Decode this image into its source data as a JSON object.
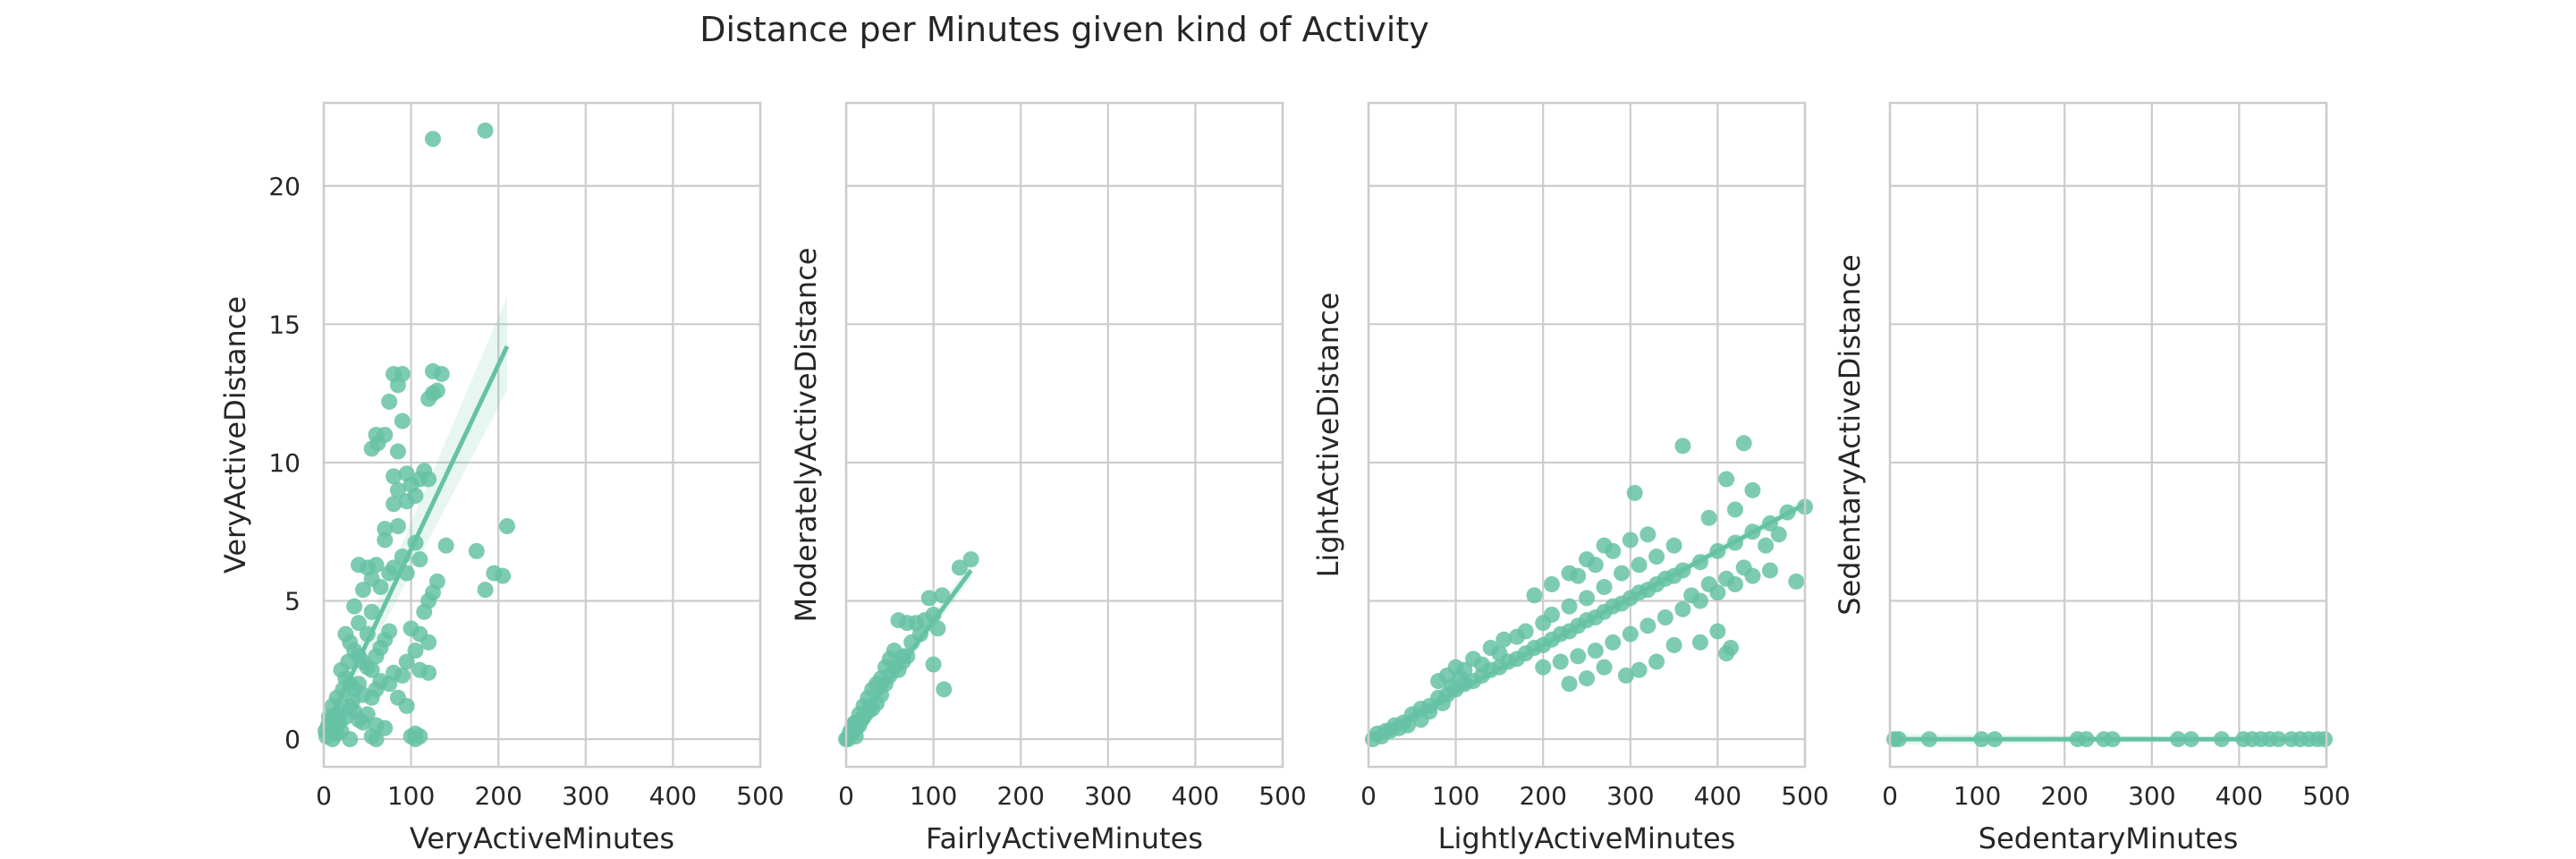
{
  "title": "Distance per Minutes given kind of Activity",
  "colors": {
    "accent": "#66c2a5",
    "grid": "#cccccc",
    "text": "#262626",
    "background": "#ffffff"
  },
  "chart_data": [
    {
      "type": "scatter",
      "xlabel": "VeryActiveMinutes",
      "ylabel": "VeryActiveDistance",
      "xlim": [
        0,
        500
      ],
      "ylim": [
        -1,
        23
      ],
      "xticks": [
        0,
        100,
        200,
        300,
        400,
        500
      ],
      "yticks": [
        0,
        5,
        10,
        15,
        20
      ],
      "show_yticklabels": true,
      "grid": true,
      "regression": {
        "x": [
          0,
          210
        ],
        "y": [
          0.2,
          14.2
        ],
        "ci_upper_end": 16.0,
        "ci_lower_end": 12.6
      },
      "points": [
        [
          125,
          21.7
        ],
        [
          185,
          22.0
        ],
        [
          80,
          13.2
        ],
        [
          90,
          13.2
        ],
        [
          125,
          13.3
        ],
        [
          135,
          13.2
        ],
        [
          85,
          12.8
        ],
        [
          125,
          12.5
        ],
        [
          130,
          12.6
        ],
        [
          75,
          12.2
        ],
        [
          120,
          12.3
        ],
        [
          90,
          11.5
        ],
        [
          60,
          11.0
        ],
        [
          70,
          11.0
        ],
        [
          55,
          10.5
        ],
        [
          85,
          10.4
        ],
        [
          62,
          10.7
        ],
        [
          80,
          9.5
        ],
        [
          95,
          9.6
        ],
        [
          110,
          9.4
        ],
        [
          115,
          9.7
        ],
        [
          85,
          9.0
        ],
        [
          100,
          9.2
        ],
        [
          80,
          8.5
        ],
        [
          95,
          8.6
        ],
        [
          105,
          8.8
        ],
        [
          120,
          9.4
        ],
        [
          85,
          7.7
        ],
        [
          70,
          7.6
        ],
        [
          140,
          7.0
        ],
        [
          210,
          7.7
        ],
        [
          175,
          6.8
        ],
        [
          195,
          6.0
        ],
        [
          205,
          5.9
        ],
        [
          185,
          5.4
        ],
        [
          70,
          7.2
        ],
        [
          90,
          6.6
        ],
        [
          105,
          7.1
        ],
        [
          110,
          6.5
        ],
        [
          60,
          6.3
        ],
        [
          75,
          6.0
        ],
        [
          50,
          6.2
        ],
        [
          40,
          6.3
        ],
        [
          55,
          5.8
        ],
        [
          80,
          6.2
        ],
        [
          95,
          6.0
        ],
        [
          65,
          5.5
        ],
        [
          45,
          5.4
        ],
        [
          35,
          4.8
        ],
        [
          55,
          4.6
        ],
        [
          130,
          5.7
        ],
        [
          125,
          5.3
        ],
        [
          120,
          5.0
        ],
        [
          115,
          4.6
        ],
        [
          100,
          4.0
        ],
        [
          110,
          3.8
        ],
        [
          120,
          3.5
        ],
        [
          105,
          3.2
        ],
        [
          95,
          2.8
        ],
        [
          120,
          2.4
        ],
        [
          110,
          2.5
        ],
        [
          90,
          2.3
        ],
        [
          80,
          2.4
        ],
        [
          25,
          3.8
        ],
        [
          30,
          3.5
        ],
        [
          35,
          3.2
        ],
        [
          40,
          3.0
        ],
        [
          45,
          2.8
        ],
        [
          50,
          2.6
        ],
        [
          55,
          2.5
        ],
        [
          60,
          3.0
        ],
        [
          65,
          3.3
        ],
        [
          70,
          3.6
        ],
        [
          75,
          3.9
        ],
        [
          50,
          3.8
        ],
        [
          40,
          4.2
        ],
        [
          20,
          2.5
        ],
        [
          25,
          2.2
        ],
        [
          30,
          2.0
        ],
        [
          35,
          1.8
        ],
        [
          40,
          2.0
        ],
        [
          45,
          1.6
        ],
        [
          55,
          1.5
        ],
        [
          60,
          1.8
        ],
        [
          65,
          2.1
        ],
        [
          75,
          2.0
        ],
        [
          85,
          1.5
        ],
        [
          95,
          1.2
        ],
        [
          10,
          1.2
        ],
        [
          15,
          1.5
        ],
        [
          20,
          1.0
        ],
        [
          25,
          0.8
        ],
        [
          30,
          1.2
        ],
        [
          35,
          1.0
        ],
        [
          40,
          0.7
        ],
        [
          45,
          0.6
        ],
        [
          50,
          0.9
        ],
        [
          60,
          0.5
        ],
        [
          70,
          0.4
        ],
        [
          2,
          0.3
        ],
        [
          5,
          0.5
        ],
        [
          8,
          0.7
        ],
        [
          12,
          0.4
        ],
        [
          15,
          0.2
        ],
        [
          18,
          0.6
        ],
        [
          3,
          0.1
        ],
        [
          6,
          0.8
        ],
        [
          10,
          0.0
        ],
        [
          14,
          0.9
        ],
        [
          20,
          0.3
        ],
        [
          30,
          0.0
        ],
        [
          55,
          0.1
        ],
        [
          60,
          0.0
        ],
        [
          100,
          0.1
        ],
        [
          105,
          0.0
        ],
        [
          110,
          0.1
        ],
        [
          105,
          0.2
        ],
        [
          22,
          1.8
        ],
        [
          28,
          2.8
        ],
        [
          33,
          1.4
        ]
      ]
    },
    {
      "type": "scatter",
      "xlabel": "FairlyActiveMinutes",
      "ylabel": "ModeratelyActiveDistance",
      "xlim": [
        0,
        500
      ],
      "ylim": [
        -1,
        23
      ],
      "xticks": [
        0,
        100,
        200,
        300,
        400,
        500
      ],
      "yticks": [
        0,
        5,
        10,
        15,
        20
      ],
      "show_yticklabels": false,
      "grid": true,
      "regression": {
        "x": [
          0,
          143
        ],
        "y": [
          0.0,
          6.1
        ],
        "ci_upper_end": 6.4,
        "ci_lower_end": 5.8
      },
      "points": [
        [
          143,
          6.5
        ],
        [
          130,
          6.2
        ],
        [
          110,
          5.2
        ],
        [
          95,
          5.1
        ],
        [
          100,
          4.5
        ],
        [
          90,
          4.3
        ],
        [
          80,
          4.2
        ],
        [
          70,
          4.2
        ],
        [
          60,
          4.3
        ],
        [
          105,
          4.0
        ],
        [
          100,
          2.7
        ],
        [
          112,
          1.8
        ],
        [
          85,
          3.8
        ],
        [
          75,
          3.5
        ],
        [
          65,
          3.0
        ],
        [
          55,
          3.2
        ],
        [
          50,
          2.9
        ],
        [
          45,
          2.6
        ],
        [
          60,
          2.5
        ],
        [
          40,
          2.2
        ],
        [
          35,
          2.0
        ],
        [
          30,
          1.8
        ],
        [
          45,
          2.0
        ],
        [
          25,
          1.5
        ],
        [
          20,
          1.2
        ],
        [
          35,
          1.3
        ],
        [
          40,
          1.6
        ],
        [
          15,
          0.9
        ],
        [
          10,
          0.6
        ],
        [
          20,
          0.8
        ],
        [
          25,
          1.0
        ],
        [
          30,
          1.1
        ],
        [
          5,
          0.3
        ],
        [
          8,
          0.5
        ],
        [
          12,
          0.4
        ],
        [
          3,
          0.1
        ],
        [
          0,
          0.0
        ],
        [
          6,
          0.2
        ],
        [
          15,
          0.5
        ],
        [
          18,
          0.7
        ],
        [
          22,
          0.9
        ],
        [
          28,
          1.2
        ],
        [
          50,
          2.3
        ],
        [
          55,
          2.6
        ],
        [
          65,
          2.8
        ],
        [
          70,
          3.0
        ],
        [
          2,
          0.0
        ],
        [
          4,
          0.2
        ],
        [
          9,
          0.3
        ],
        [
          11,
          0.1
        ]
      ]
    },
    {
      "type": "scatter",
      "xlabel": "LightlyActiveMinutes",
      "ylabel": "LightActiveDistance",
      "xlim": [
        0,
        500
      ],
      "ylim": [
        -1,
        23
      ],
      "xticks": [
        0,
        100,
        200,
        300,
        400,
        500
      ],
      "yticks": [
        0,
        5,
        10,
        15,
        20
      ],
      "show_yticklabels": false,
      "grid": true,
      "regression": {
        "x": [
          0,
          500
        ],
        "y": [
          0.0,
          8.5
        ],
        "ci_upper_end": 8.7,
        "ci_lower_end": 8.3
      },
      "points": [
        [
          10,
          0.2
        ],
        [
          20,
          0.3
        ],
        [
          30,
          0.5
        ],
        [
          40,
          0.6
        ],
        [
          50,
          0.9
        ],
        [
          60,
          1.1
        ],
        [
          70,
          1.2
        ],
        [
          80,
          1.5
        ],
        [
          90,
          1.6
        ],
        [
          100,
          1.8
        ],
        [
          110,
          2.0
        ],
        [
          120,
          2.1
        ],
        [
          130,
          2.3
        ],
        [
          140,
          2.5
        ],
        [
          150,
          2.6
        ],
        [
          160,
          2.8
        ],
        [
          170,
          2.9
        ],
        [
          180,
          3.1
        ],
        [
          190,
          3.3
        ],
        [
          200,
          3.4
        ],
        [
          210,
          3.6
        ],
        [
          220,
          3.8
        ],
        [
          230,
          3.9
        ],
        [
          240,
          4.1
        ],
        [
          250,
          4.3
        ],
        [
          260,
          4.4
        ],
        [
          270,
          4.6
        ],
        [
          280,
          4.8
        ],
        [
          290,
          4.9
        ],
        [
          300,
          5.1
        ],
        [
          310,
          5.3
        ],
        [
          320,
          5.4
        ],
        [
          330,
          5.6
        ],
        [
          340,
          5.8
        ],
        [
          350,
          5.9
        ],
        [
          360,
          6.1
        ],
        [
          380,
          6.4
        ],
        [
          400,
          6.8
        ],
        [
          420,
          7.1
        ],
        [
          440,
          7.5
        ],
        [
          460,
          7.8
        ],
        [
          480,
          8.2
        ],
        [
          500,
          8.4
        ],
        [
          360,
          10.6
        ],
        [
          430,
          10.7
        ],
        [
          410,
          9.4
        ],
        [
          440,
          9.0
        ],
        [
          305,
          8.9
        ],
        [
          420,
          8.3
        ],
        [
          390,
          8.0
        ],
        [
          470,
          7.4
        ],
        [
          455,
          7.0
        ],
        [
          155,
          3.6
        ],
        [
          140,
          3.3
        ],
        [
          120,
          2.9
        ],
        [
          100,
          2.6
        ],
        [
          90,
          2.3
        ],
        [
          80,
          2.1
        ],
        [
          110,
          2.5
        ],
        [
          130,
          2.7
        ],
        [
          150,
          3.1
        ],
        [
          170,
          3.7
        ],
        [
          180,
          3.9
        ],
        [
          200,
          4.2
        ],
        [
          210,
          4.5
        ],
        [
          230,
          4.8
        ],
        [
          250,
          5.1
        ],
        [
          270,
          5.5
        ],
        [
          290,
          6.0
        ],
        [
          310,
          6.3
        ],
        [
          330,
          6.6
        ],
        [
          350,
          7.0
        ],
        [
          200,
          2.6
        ],
        [
          220,
          2.8
        ],
        [
          240,
          3.0
        ],
        [
          260,
          3.2
        ],
        [
          280,
          3.5
        ],
        [
          300,
          3.8
        ],
        [
          320,
          4.1
        ],
        [
          340,
          4.4
        ],
        [
          360,
          4.7
        ],
        [
          380,
          5.0
        ],
        [
          400,
          5.3
        ],
        [
          420,
          5.6
        ],
        [
          440,
          5.9
        ],
        [
          410,
          5.8
        ],
        [
          430,
          6.2
        ],
        [
          390,
          5.6
        ],
        [
          370,
          5.2
        ],
        [
          330,
          2.8
        ],
        [
          310,
          2.5
        ],
        [
          295,
          2.3
        ],
        [
          250,
          2.2
        ],
        [
          270,
          2.6
        ],
        [
          230,
          2.0
        ],
        [
          415,
          3.3
        ],
        [
          380,
          3.5
        ],
        [
          350,
          3.4
        ],
        [
          410,
          3.1
        ],
        [
          400,
          3.9
        ],
        [
          490,
          5.7
        ],
        [
          460,
          6.1
        ],
        [
          240,
          5.9
        ],
        [
          260,
          6.3
        ],
        [
          280,
          6.8
        ],
        [
          300,
          7.2
        ],
        [
          320,
          7.4
        ],
        [
          270,
          7.0
        ],
        [
          250,
          6.5
        ],
        [
          230,
          6.0
        ],
        [
          210,
          5.6
        ],
        [
          190,
          5.2
        ],
        [
          60,
          0.7
        ],
        [
          70,
          1.0
        ],
        [
          45,
          0.5
        ],
        [
          35,
          0.4
        ],
        [
          25,
          0.3
        ],
        [
          15,
          0.1
        ],
        [
          5,
          0.0
        ],
        [
          85,
          1.3
        ],
        [
          95,
          1.9
        ],
        [
          105,
          2.2
        ]
      ]
    },
    {
      "type": "scatter",
      "xlabel": "SedentaryMinutes",
      "ylabel": "SedentaryActiveDistance",
      "xlim": [
        0,
        500
      ],
      "ylim": [
        -1,
        23
      ],
      "xticks": [
        0,
        100,
        200,
        300,
        400,
        500
      ],
      "yticks": [
        0,
        5,
        10,
        15,
        20
      ],
      "show_yticklabels": false,
      "grid": true,
      "regression": {
        "x": [
          0,
          500
        ],
        "y": [
          0.0,
          0.0
        ],
        "ci_upper_end": 0.05,
        "ci_lower_end": -0.05
      },
      "points": [
        [
          5,
          0.0
        ],
        [
          10,
          0.0
        ],
        [
          45,
          0.0
        ],
        [
          105,
          0.0
        ],
        [
          120,
          0.0
        ],
        [
          215,
          0.0
        ],
        [
          225,
          0.0
        ],
        [
          245,
          0.0
        ],
        [
          255,
          0.0
        ],
        [
          330,
          0.0
        ],
        [
          345,
          0.0
        ],
        [
          380,
          0.0
        ],
        [
          405,
          0.0
        ],
        [
          415,
          0.0
        ],
        [
          425,
          0.0
        ],
        [
          435,
          0.0
        ],
        [
          445,
          0.0
        ],
        [
          460,
          0.0
        ],
        [
          470,
          0.0
        ],
        [
          480,
          0.0
        ],
        [
          490,
          0.0
        ],
        [
          498,
          0.0
        ]
      ]
    }
  ]
}
